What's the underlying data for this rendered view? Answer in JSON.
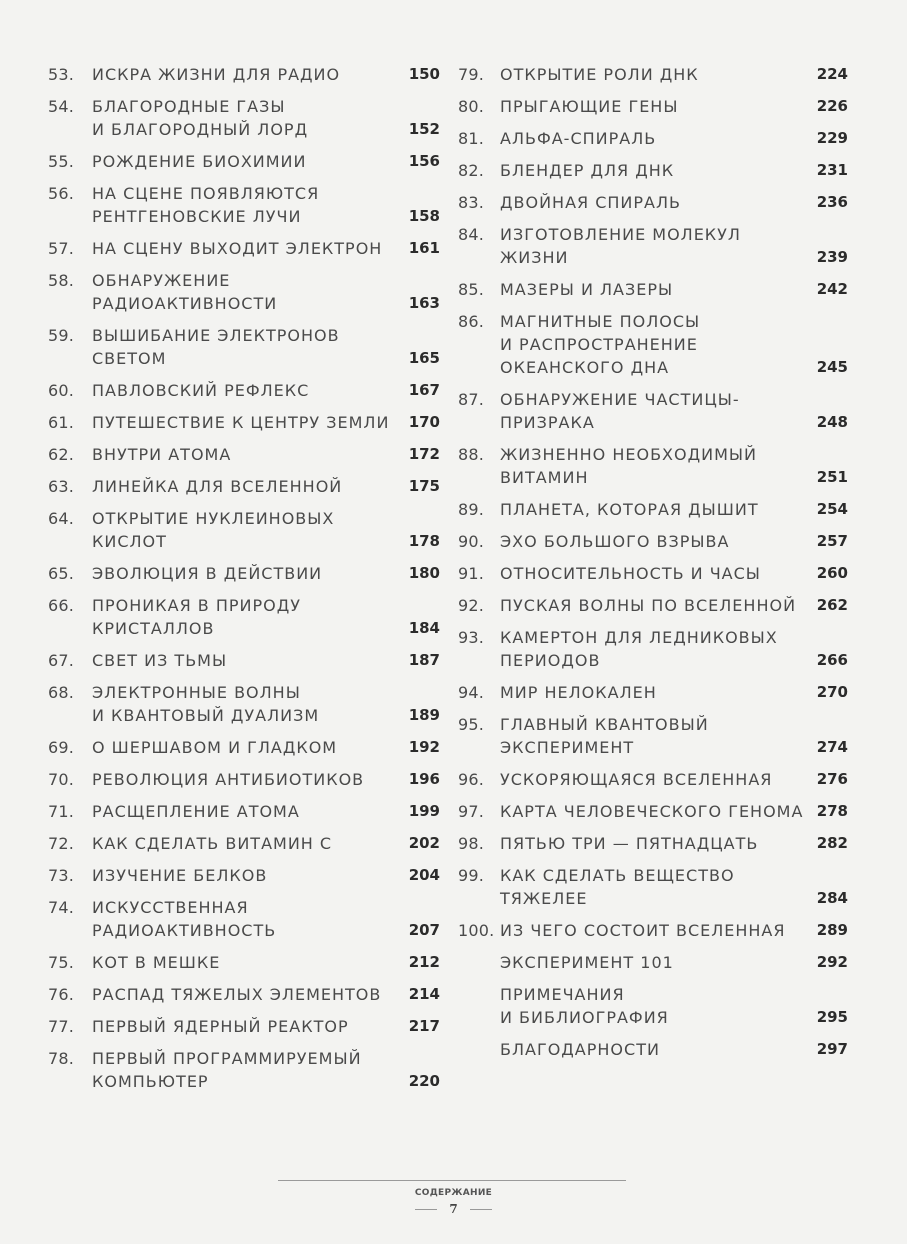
{
  "toc_left": [
    {
      "num": "53.",
      "lines": [
        "ИСКРА ЖИЗНИ ДЛЯ РАДИО"
      ],
      "page": "150"
    },
    {
      "num": "54.",
      "lines": [
        "БЛАГОРОДНЫЕ ГАЗЫ",
        "И БЛАГОРОДНЫЙ ЛОРД"
      ],
      "page": "152"
    },
    {
      "num": "55.",
      "lines": [
        "РОЖДЕНИЕ БИОХИМИИ"
      ],
      "page": "156"
    },
    {
      "num": "56.",
      "lines": [
        "НА СЦЕНЕ ПОЯВЛЯЮТСЯ",
        "РЕНТГЕНОВСКИЕ ЛУЧИ"
      ],
      "page": "158"
    },
    {
      "num": "57.",
      "lines": [
        "НА СЦЕНУ ВЫХОДИТ ЭЛЕКТРОН"
      ],
      "page": "161"
    },
    {
      "num": "58.",
      "lines": [
        "ОБНАРУЖЕНИЕ",
        "РАДИОАКТИВНОСТИ"
      ],
      "page": "163"
    },
    {
      "num": "59.",
      "lines": [
        "ВЫШИБАНИЕ ЭЛЕКТРОНОВ",
        "СВЕТОМ"
      ],
      "page": "165"
    },
    {
      "num": "60.",
      "lines": [
        "ПАВЛОВСКИЙ РЕФЛЕКС"
      ],
      "page": "167"
    },
    {
      "num": "61.",
      "lines": [
        "ПУТЕШЕСТВИЕ К ЦЕНТРУ ЗЕМЛИ"
      ],
      "page": "170"
    },
    {
      "num": "62.",
      "lines": [
        "ВНУТРИ АТОМА"
      ],
      "page": "172"
    },
    {
      "num": "63.",
      "lines": [
        "ЛИНЕЙКА ДЛЯ ВСЕЛЕННОЙ"
      ],
      "page": "175"
    },
    {
      "num": "64.",
      "lines": [
        "ОТКРЫТИЕ НУКЛЕИНОВЫХ",
        "КИСЛОТ"
      ],
      "page": "178"
    },
    {
      "num": "65.",
      "lines": [
        "ЭВОЛЮЦИЯ В ДЕЙСТВИИ"
      ],
      "page": "180"
    },
    {
      "num": "66.",
      "lines": [
        "ПРОНИКАЯ В ПРИРОДУ",
        "КРИСТАЛЛОВ"
      ],
      "page": "184"
    },
    {
      "num": "67.",
      "lines": [
        "СВЕТ ИЗ ТЬМЫ"
      ],
      "page": "187"
    },
    {
      "num": "68.",
      "lines": [
        "ЭЛЕКТРОННЫЕ ВОЛНЫ",
        "И КВАНТОВЫЙ ДУАЛИЗМ"
      ],
      "page": "189"
    },
    {
      "num": "69.",
      "lines": [
        "О ШЕРШАВОМ И ГЛАДКОМ"
      ],
      "page": "192"
    },
    {
      "num": "70.",
      "lines": [
        "РЕВОЛЮЦИЯ АНТИБИОТИКОВ"
      ],
      "page": "196"
    },
    {
      "num": "71.",
      "lines": [
        "РАСЩЕПЛЕНИЕ АТОМА"
      ],
      "page": "199"
    },
    {
      "num": "72.",
      "lines": [
        "КАК СДЕЛАТЬ ВИТАМИН С"
      ],
      "page": "202"
    },
    {
      "num": "73.",
      "lines": [
        "ИЗУЧЕНИЕ БЕЛКОВ"
      ],
      "page": "204"
    },
    {
      "num": "74.",
      "lines": [
        "ИСКУССТВЕННАЯ",
        "РАДИОАКТИВНОСТЬ"
      ],
      "page": "207"
    },
    {
      "num": "75.",
      "lines": [
        "КОТ В МЕШКЕ"
      ],
      "page": "212"
    },
    {
      "num": "76.",
      "lines": [
        "РАСПАД ТЯЖЕЛЫХ ЭЛЕМЕНТОВ"
      ],
      "page": "214"
    },
    {
      "num": "77.",
      "lines": [
        "ПЕРВЫЙ ЯДЕРНЫЙ РЕАКТОР"
      ],
      "page": "217"
    },
    {
      "num": "78.",
      "lines": [
        "ПЕРВЫЙ ПРОГРАММИРУЕМЫЙ",
        "КОМПЬЮТЕР"
      ],
      "page": "220"
    }
  ],
  "toc_right": [
    {
      "num": "79.",
      "lines": [
        "ОТКРЫТИЕ РОЛИ ДНК"
      ],
      "page": "224"
    },
    {
      "num": "80.",
      "lines": [
        "ПРЫГАЮЩИЕ ГЕНЫ"
      ],
      "page": "226"
    },
    {
      "num": "81.",
      "lines": [
        "АЛЬФА-СПИРАЛЬ"
      ],
      "page": "229"
    },
    {
      "num": "82.",
      "lines": [
        "БЛЕНДЕР ДЛЯ ДНК"
      ],
      "page": "231"
    },
    {
      "num": "83.",
      "lines": [
        "ДВОЙНАЯ СПИРАЛЬ"
      ],
      "page": "236"
    },
    {
      "num": "84.",
      "lines": [
        "ИЗГОТОВЛЕНИЕ МОЛЕКУЛ",
        "ЖИЗНИ"
      ],
      "page": "239"
    },
    {
      "num": "85.",
      "lines": [
        "МАЗЕРЫ И ЛАЗЕРЫ"
      ],
      "page": "242"
    },
    {
      "num": "86.",
      "lines": [
        "МАГНИТНЫЕ ПОЛОСЫ",
        "И РАСПРОСТРАНЕНИЕ",
        "ОКЕАНСКОГО ДНА"
      ],
      "page": "245"
    },
    {
      "num": "87.",
      "lines": [
        "ОБНАРУЖЕНИЕ ЧАСТИЦЫ-",
        "ПРИЗРАКА"
      ],
      "page": "248"
    },
    {
      "num": "88.",
      "lines": [
        "ЖИЗНЕННО НЕОБХОДИМЫЙ",
        "ВИТАМИН"
      ],
      "page": "251"
    },
    {
      "num": "89.",
      "lines": [
        "ПЛАНЕТА, КОТОРАЯ ДЫШИТ"
      ],
      "page": "254"
    },
    {
      "num": "90.",
      "lines": [
        "ЭХО БОЛЬШОГО ВЗРЫВА"
      ],
      "page": "257"
    },
    {
      "num": "91.",
      "lines": [
        "ОТНОСИТЕЛЬНОСТЬ И ЧАСЫ"
      ],
      "page": "260"
    },
    {
      "num": "92.",
      "lines": [
        "ПУСКАЯ ВОЛНЫ ПО ВСЕЛЕННОЙ"
      ],
      "page": "262"
    },
    {
      "num": "93.",
      "lines": [
        "КАМЕРТОН ДЛЯ ЛЕДНИКОВЫХ",
        "ПЕРИОДОВ"
      ],
      "page": "266"
    },
    {
      "num": "94.",
      "lines": [
        "МИР НЕЛОКАЛЕН"
      ],
      "page": "270"
    },
    {
      "num": "95.",
      "lines": [
        "ГЛАВНЫЙ КВАНТОВЫЙ",
        "ЭКСПЕРИМЕНТ"
      ],
      "page": "274"
    },
    {
      "num": "96.",
      "lines": [
        "УСКОРЯЮЩАЯСЯ ВСЕЛЕННАЯ"
      ],
      "page": "276"
    },
    {
      "num": "97.",
      "lines": [
        "КАРТА ЧЕЛОВЕЧЕСКОГО ГЕНОМА"
      ],
      "page": "278"
    },
    {
      "num": "98.",
      "lines": [
        "ПЯТЬЮ ТРИ — ПЯТНАДЦАТЬ"
      ],
      "page": "282"
    },
    {
      "num": "99.",
      "lines": [
        "КАК СДЕЛАТЬ ВЕЩЕСТВО",
        "ТЯЖЕЛЕЕ"
      ],
      "page": "284"
    },
    {
      "num": "100.",
      "lines": [
        "ИЗ ЧЕГО СОСТОИТ ВСЕЛЕННАЯ"
      ],
      "page": "289"
    },
    {
      "num": "",
      "lines": [
        "ЭКСПЕРИМЕНТ 101"
      ],
      "page": "292"
    },
    {
      "num": "",
      "lines": [
        "ПРИМЕЧАНИЯ",
        "И БИБЛИОГРАФИЯ"
      ],
      "page": "295"
    },
    {
      "num": "",
      "lines": [
        "БЛАГОДАРНОСТИ"
      ],
      "page": "297"
    }
  ],
  "footer": {
    "section": "СОДЕРЖАНИЕ",
    "page_number": "7"
  }
}
